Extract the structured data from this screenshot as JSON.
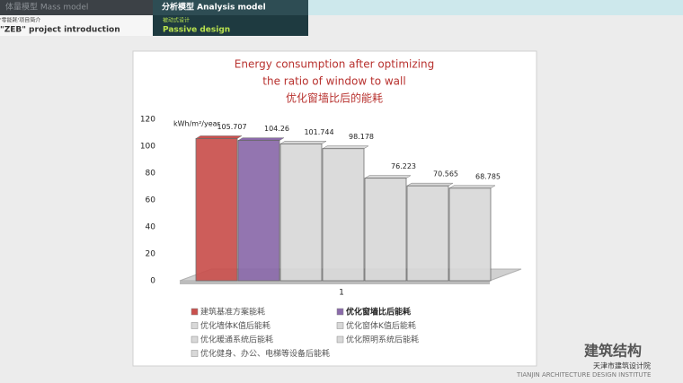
{
  "header": {
    "tab_1": "体量模型 Mass model",
    "tab_2": "分析模型 Analysis model",
    "section_small": "'零能耗'项目简介",
    "section": "\"ZEB\" project introduction",
    "subsection_small": "被动式设计",
    "subsection": "Passive design"
  },
  "chart_data": {
    "type": "bar3d",
    "title": [
      "Energy consumption after optimizing",
      "the ratio of window to wall",
      "优化窗墙比后的能耗"
    ],
    "y_unit": "kWh/m²/year",
    "categories": [
      "1"
    ],
    "ylim": [
      0,
      120
    ],
    "yticks": [
      0,
      20,
      40,
      60,
      80,
      100,
      120
    ],
    "series": [
      {
        "name": "建筑基准方案能耗",
        "color": "#c9504d",
        "values": [
          105.707
        ]
      },
      {
        "name": "优化窗墙比后能耗",
        "color": "#8a6aaa",
        "values": [
          104.26
        ]
      },
      {
        "name": "优化墙体K值后能耗",
        "color": "#d8d8d8",
        "values": [
          101.744
        ]
      },
      {
        "name": "优化窗体K值后能耗",
        "color": "#d8d8d8",
        "values": [
          98.178
        ]
      },
      {
        "name": "优化暖通系统后能耗",
        "color": "#d8d8d8",
        "values": [
          76.223
        ]
      },
      {
        "name": "优化照明系统后能耗",
        "color": "#d8d8d8",
        "values": [
          70.565
        ]
      },
      {
        "name": "优化健身、办公、电梯等设备后能耗",
        "color": "#d8d8d8",
        "values": [
          68.785
        ]
      }
    ]
  },
  "footer": {
    "brand": "建筑结构",
    "institute_cn": "天津市建筑设计院",
    "institute_en": "TIANJIN ARCHITECTURE DESIGN INSTITUTE"
  }
}
